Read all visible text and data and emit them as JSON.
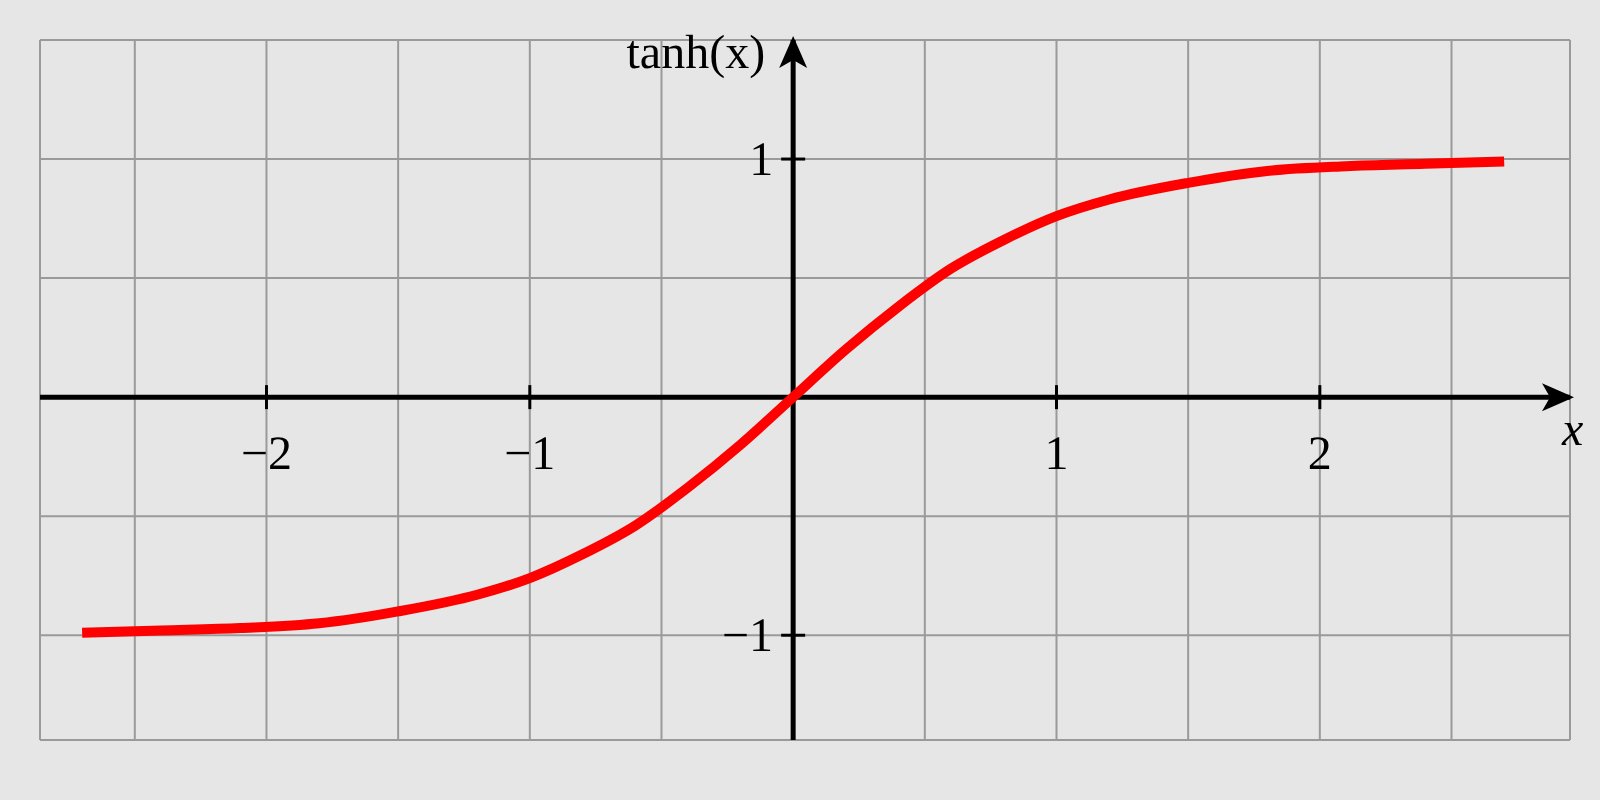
{
  "chart_data": {
    "type": "line",
    "xlabel": "x",
    "ylabel": "tanh(x)",
    "x": [
      -2.7,
      -2.4,
      -2.1,
      -1.8,
      -1.5,
      -1.2,
      -1.0,
      -0.8,
      -0.6,
      -0.4,
      -0.2,
      0,
      0.2,
      0.4,
      0.6,
      0.8,
      1.0,
      1.2,
      1.5,
      1.8,
      2.1,
      2.4,
      2.7
    ],
    "series": [
      {
        "color": "#ff0000",
        "values": [
          -0.99,
          -0.98,
          -0.97,
          -0.95,
          -0.9,
          -0.83,
          -0.76,
          -0.66,
          -0.54,
          -0.38,
          -0.2,
          0,
          0.2,
          0.38,
          0.54,
          0.66,
          0.76,
          0.83,
          0.9,
          0.95,
          0.97,
          0.98,
          0.99
        ]
      }
    ],
    "xlim": [
      -2.86,
      2.95
    ],
    "ylim": [
      -1.44,
      1.5
    ],
    "xticks": [
      {
        "value": -2.5,
        "label": null
      },
      -2,
      {
        "value": -1.5,
        "label": null
      },
      -1,
      {
        "value": -0.5,
        "label": null
      },
      {
        "value": 0.5,
        "label": null
      },
      1,
      {
        "value": 1.5,
        "label": null
      },
      2,
      {
        "value": 2.5,
        "label": null
      }
    ],
    "yticks": [
      -1,
      {
        "value": -0.5,
        "label": null
      },
      {
        "value": 0.5,
        "label": null
      },
      1
    ],
    "grid": true,
    "marker": "none",
    "line_style": "solid"
  }
}
